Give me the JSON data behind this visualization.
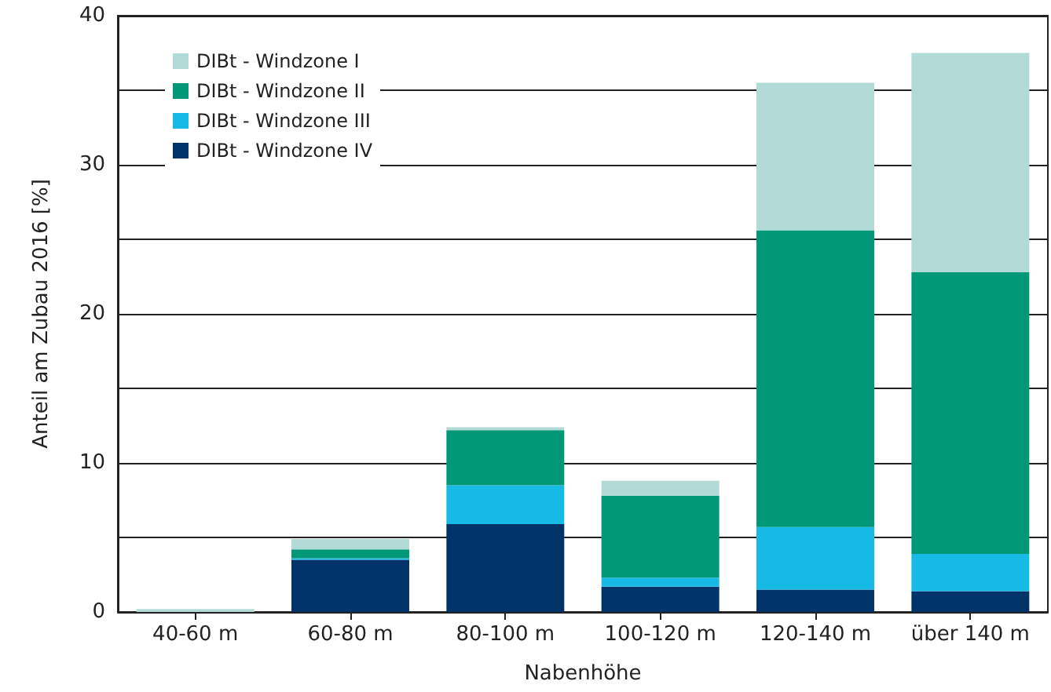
{
  "chart_data": {
    "type": "bar",
    "stacked": true,
    "xlabel": "Nabenhöhe",
    "ylabel": "Anteil am Zubau 2016 [%]",
    "categories": [
      "40-60 m",
      "60-80 m",
      "80-100 m",
      "100-120 m",
      "120-140 m",
      "über 140 m"
    ],
    "series": [
      {
        "name": "DIBt - Windzone IV",
        "color": "#003369",
        "values": [
          0,
          3.5,
          5.9,
          1.7,
          1.5,
          1.4
        ]
      },
      {
        "name": "DIBt - Windzone III",
        "color": "#17b9e5",
        "values": [
          0,
          0.1,
          2.6,
          0.6,
          4.2,
          2.5
        ]
      },
      {
        "name": "DIBt - Windzone II",
        "color": "#009877",
        "values": [
          0,
          0.6,
          3.7,
          5.5,
          19.9,
          18.9
        ]
      },
      {
        "name": "DIBt - Windzone I",
        "color": "#b2dbd8",
        "values": [
          0.2,
          0.7,
          0.2,
          1.0,
          9.9,
          14.7
        ]
      }
    ],
    "ylim": [
      0,
      40
    ],
    "yticks": [
      0,
      {
        "value": 5,
        "label": null
      },
      10,
      {
        "value": 15,
        "label": null
      },
      20,
      {
        "value": 25,
        "label": null
      },
      30,
      {
        "value": 35,
        "label": null
      },
      40
    ],
    "grid": "y",
    "legend": "top left"
  }
}
